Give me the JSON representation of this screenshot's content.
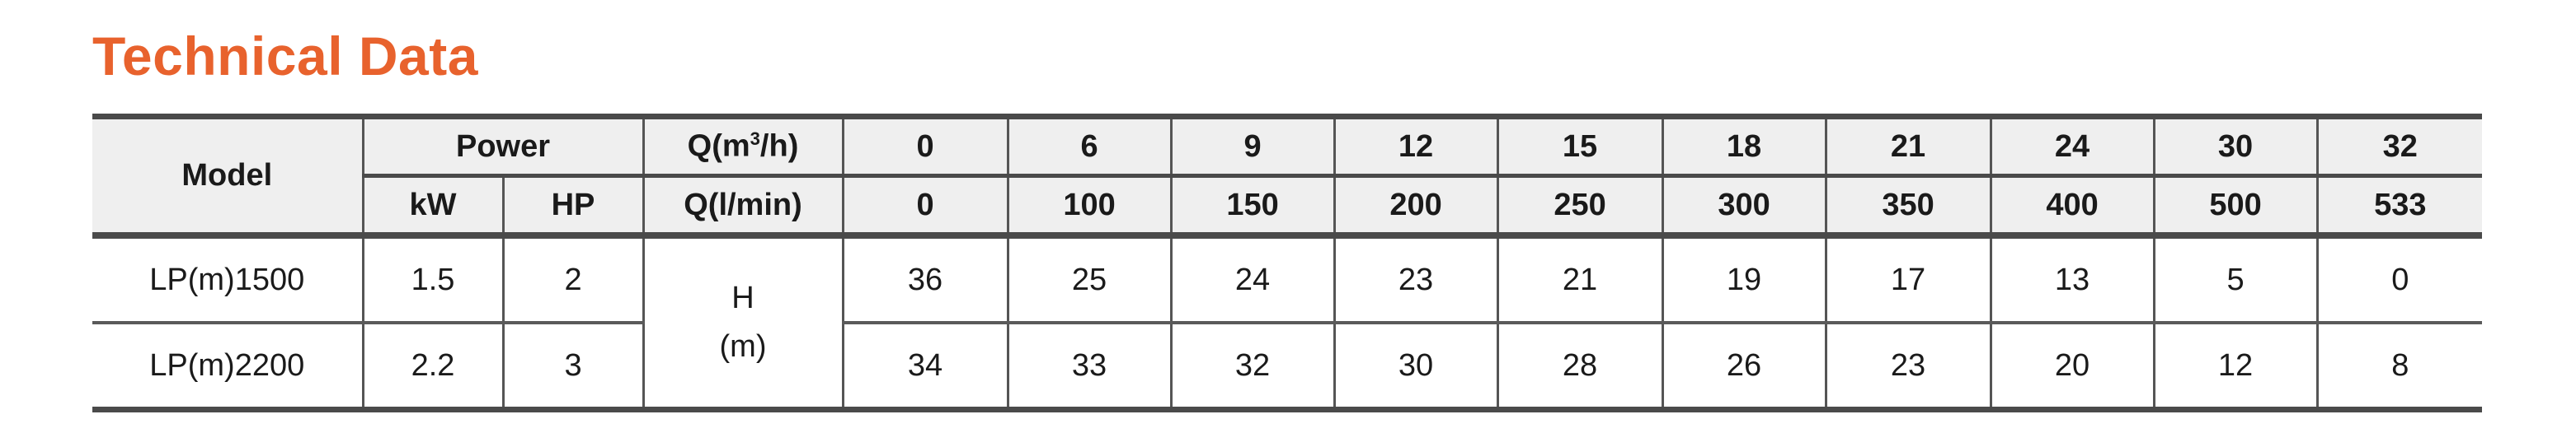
{
  "title": "Technical Data",
  "header": {
    "model": "Model",
    "power": "Power",
    "kw": "kW",
    "hp": "HP",
    "q_m3h_prefix": "Q(m",
    "q_m3h_sup": "3",
    "q_m3h_suffix": "/h)",
    "q_lmin": "Q(l/min)",
    "flow_m3h": [
      "0",
      "6",
      "9",
      "12",
      "15",
      "18",
      "21",
      "24",
      "30",
      "32"
    ],
    "flow_lmin": [
      "0",
      "100",
      "150",
      "200",
      "250",
      "300",
      "350",
      "400",
      "500",
      "533"
    ]
  },
  "head_label": {
    "line1": "H",
    "line2": "(m)"
  },
  "rows": [
    {
      "model": "LP(m)1500",
      "kw": "1.5",
      "hp": "2",
      "head": [
        "36",
        "25",
        "24",
        "23",
        "21",
        "19",
        "17",
        "13",
        "5",
        "0"
      ]
    },
    {
      "model": "LP(m)2200",
      "kw": "2.2",
      "hp": "3",
      "head": [
        "34",
        "33",
        "32",
        "30",
        "28",
        "26",
        "23",
        "20",
        "12",
        "8"
      ]
    }
  ],
  "colors": {
    "title": "#e8622d",
    "header_bg": "#efefef",
    "rule": "#4a4a4a"
  }
}
